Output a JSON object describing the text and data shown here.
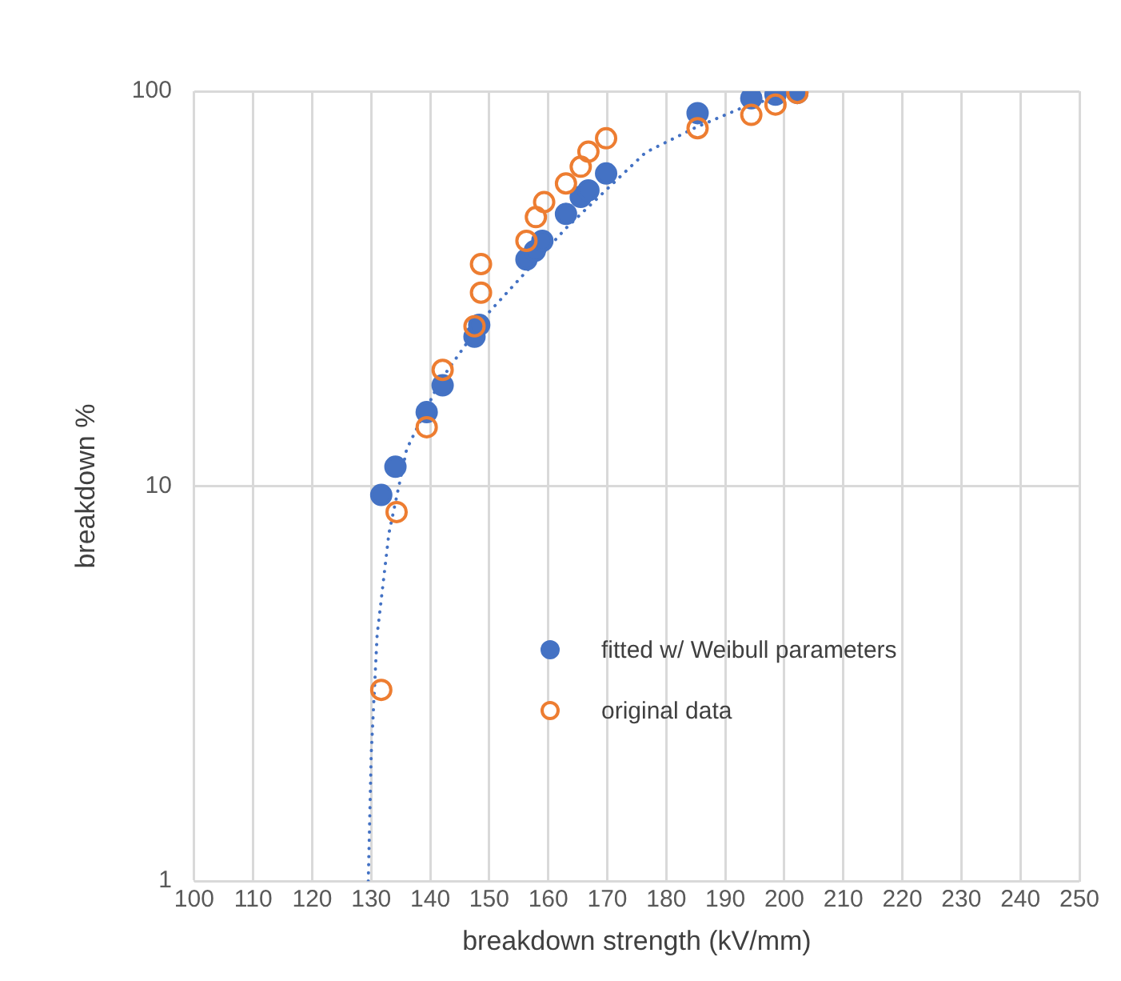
{
  "chart_data": {
    "type": "scatter",
    "xlabel": "breakdown strength (kV/mm)",
    "ylabel": "breakdown %",
    "xlim": [
      100,
      250
    ],
    "xticks": [
      100,
      110,
      120,
      130,
      140,
      150,
      160,
      170,
      180,
      190,
      200,
      210,
      220,
      230,
      240,
      250
    ],
    "ylim": [
      1,
      100
    ],
    "yticks": [
      1,
      10,
      100
    ],
    "log": "y",
    "grid": true,
    "legend": "bottom right",
    "series": [
      {
        "name": "fitted w/ Weibull parameters",
        "color": "#4472c4",
        "marker": "circle",
        "x": [
          131.7,
          134.1,
          139.4,
          142.1,
          147.5,
          148.3,
          156.3,
          157.7,
          159.0,
          163.0,
          165.5,
          166.8,
          169.8,
          185.3,
          194.4,
          198.5,
          202.2
        ],
        "values": [
          9.5,
          11.2,
          15.4,
          18,
          23.9,
          25.6,
          37.5,
          39.4,
          41.8,
          48.9,
          54,
          56.1,
          61.9,
          88,
          96,
          98,
          99
        ]
      },
      {
        "name": "original data",
        "color": "#ed7d31",
        "marker": "circle",
        "x": [
          131.7,
          134.3,
          139.4,
          142.1,
          147.5,
          148.6,
          148.6,
          156.3,
          157.9,
          159.3,
          163.0,
          165.5,
          166.8,
          169.8,
          185.3,
          194.4,
          198.5,
          202.2
        ],
        "values": [
          3.05,
          8.6,
          14.1,
          19.7,
          25.4,
          30.9,
          36.5,
          41.8,
          48,
          52.4,
          58.4,
          64.4,
          70.3,
          76,
          80.6,
          87.1,
          92.5,
          99
        ]
      },
      {
        "type": "line",
        "color": "#4472c4",
        "line_style": "dotted",
        "marker": "none",
        "x": [
          129.5,
          130,
          131,
          133,
          136,
          141.6,
          149.6,
          163,
          176.5,
          185,
          193,
          200,
          204
        ],
        "values": [
          1,
          2.1,
          4.2,
          7.6,
          12.4,
          18.4,
          27.2,
          45,
          70,
          81,
          91,
          98,
          100
        ]
      }
    ]
  }
}
